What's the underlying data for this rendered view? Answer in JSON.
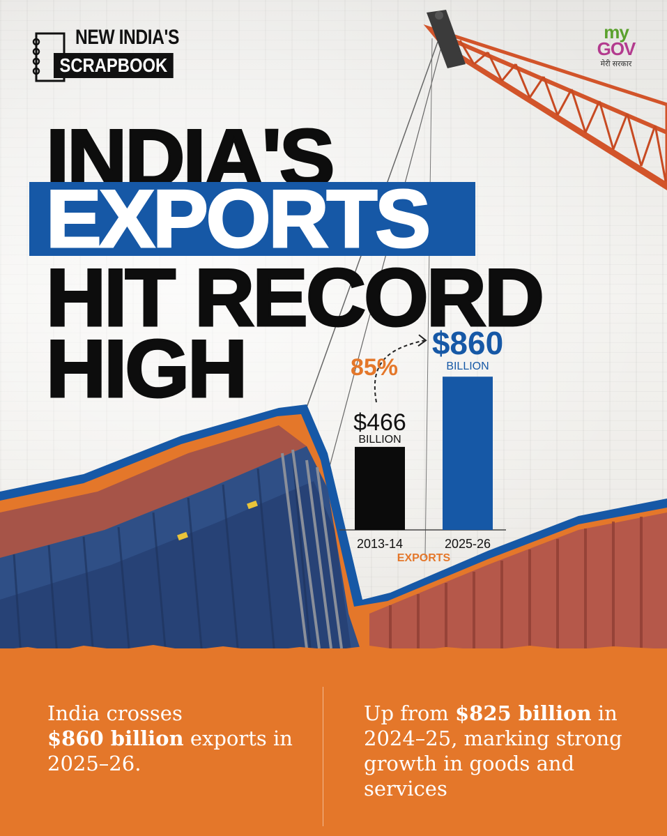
{
  "brand": {
    "scrapbook_top": "NEW INDIA'S",
    "scrapbook_bottom": "SCRAPBOOK",
    "mygov_my": "my",
    "mygov_gov": "GOV",
    "mygov_tagline": "मेरी सरकार"
  },
  "headline": {
    "line1": "INDIA'S",
    "line2": "EXPORTS",
    "line3": "HIT RECORD",
    "line4": "HIGH"
  },
  "chart_data": {
    "type": "bar",
    "title": "",
    "xlabel": "EXPORTS",
    "ylabel": "",
    "categories": [
      "2013-14",
      "2025-26"
    ],
    "values": [
      466,
      860
    ],
    "value_labels": [
      "$466",
      "$860"
    ],
    "unit_label": "BILLION",
    "growth_label": "85%",
    "ylim": [
      0,
      900
    ],
    "grid": false,
    "bar_colors": [
      "#0b0b0b",
      "#1658a6"
    ],
    "growth_color": "#e4772a"
  },
  "facts": {
    "left": {
      "pre": "India crosses",
      "bold": "$860 billion",
      "post": "exports in",
      "post2": "2025–26."
    },
    "right": {
      "pre": "Up from",
      "bold": "$825 billion",
      "post": "in",
      "line2": "2024–25, marking strong",
      "line3": "growth in goods and",
      "line4": "services"
    }
  },
  "colors": {
    "accent_blue": "#1658a6",
    "accent_orange": "#e4772a",
    "text_dark": "#0d0d0d"
  },
  "icons": [
    "notebook-icon",
    "crane-icon",
    "shipping-containers-image"
  ]
}
